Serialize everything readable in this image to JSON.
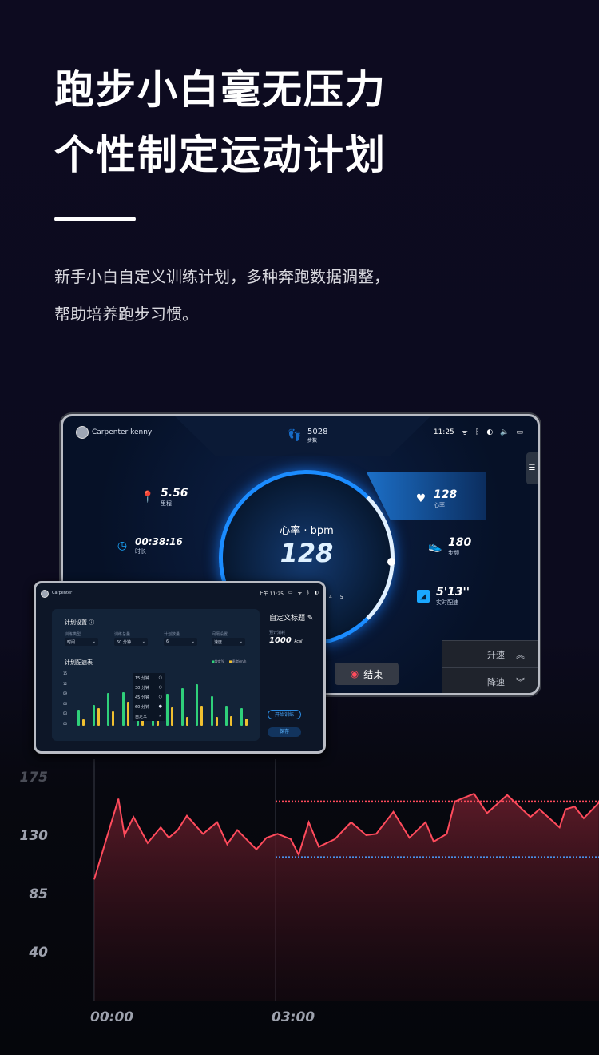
{
  "headline": {
    "line1": "跑步小白毫无压力",
    "line2": "个性制定运动计划"
  },
  "subtitle": {
    "line1": "新手小白自定义训练计划，多种奔跑数据调整，",
    "line2": "帮助培养跑步习惯。"
  },
  "main_tablet": {
    "user": "Carpenter kenny",
    "steps": {
      "value": "5028",
      "label": "步数"
    },
    "time": "11:25",
    "status_icons": [
      "wifi-icon",
      "bluetooth-icon",
      "brightness-icon",
      "volume-icon",
      "message-icon"
    ],
    "distance": {
      "value": "5.56",
      "label": "里程"
    },
    "duration": {
      "value": "00:38:16",
      "label": "时长"
    },
    "gauge": {
      "unit": "心率 · bpm",
      "value": "128"
    },
    "heart_rate": {
      "value": "128",
      "label": "心率"
    },
    "cadence": {
      "value": "180",
      "label": "步频"
    },
    "pace": {
      "value": "5'13''",
      "label": "实时配速"
    },
    "end_button": "结束",
    "speed_up": "升速",
    "speed_down": "降速",
    "mini_axis": [
      "4",
      "5"
    ],
    "accent": "#1a8cff"
  },
  "plan_tablet": {
    "user": "Carpenter",
    "time": "上午 11:25",
    "section_title": "计划设置",
    "fields": [
      {
        "label": "训练类型",
        "value": "时间"
      },
      {
        "label": "训练总量",
        "value": "60 分钟"
      },
      {
        "label": "计划数量",
        "value": "6"
      },
      {
        "label": "间隔设置",
        "value": "速度"
      }
    ],
    "dropdown_options": [
      {
        "label": "15 分钟",
        "selected": false
      },
      {
        "label": "30 分钟",
        "selected": false
      },
      {
        "label": "45 分钟",
        "selected": false
      },
      {
        "label": "60 分钟",
        "selected": true
      },
      {
        "label": "自定义",
        "selected": false
      }
    ],
    "pace_table_title": "计划配速表",
    "legend": [
      "坡度%",
      "速度km/h"
    ],
    "y_ticks": [
      "15",
      "12",
      "09",
      "06",
      "03",
      "00"
    ],
    "bars": {
      "green": [
        4.5,
        5.8,
        9.3,
        9.6,
        9.7,
        10.4,
        9.1,
        10.6,
        11.9,
        8.3,
        5.6,
        4.9
      ],
      "yellow": [
        1.9,
        5.1,
        4.1,
        6.8,
        5.2,
        5.6,
        5.2,
        2.6,
        5.6,
        2.4,
        2.8,
        2.1
      ]
    },
    "custom_title": "自定义标题",
    "est_label": "预计消耗",
    "est_value": "1000",
    "est_unit": "kcal",
    "start_button": "开始训练",
    "save_button": "保存",
    "colors": {
      "green": "#2fd07a",
      "yellow": "#f0c030"
    }
  },
  "chart_data": {
    "type": "area",
    "y_ticks": [
      "175",
      "130",
      "85",
      "40"
    ],
    "x_ticks": [
      "00:00",
      "03:00"
    ],
    "ylim": [
      40,
      175
    ],
    "x": [
      "00:00",
      "00:24",
      "00:30",
      "00:39",
      "00:53",
      "01:06",
      "01:14",
      "01:23",
      "01:32",
      "01:48",
      "02:02",
      "02:12",
      "02:22",
      "02:41",
      "02:51",
      "03:02",
      "03:15",
      "03:23",
      "03:33",
      "03:43",
      "03:59",
      "04:15",
      "04:30",
      "04:40",
      "04:57",
      "05:13",
      "05:29",
      "05:37",
      "05:50",
      "05:58",
      "06:17",
      "06:30",
      "06:50",
      "07:13",
      "07:22",
      "07:42",
      "07:48",
      "07:57",
      "08:06",
      "08:21"
    ],
    "values": [
      96,
      158,
      130,
      144,
      124,
      136,
      128,
      134,
      145,
      131,
      140,
      123,
      134,
      119,
      128,
      131,
      127,
      115,
      140,
      121,
      127,
      140,
      130,
      131,
      148,
      128,
      140,
      125,
      131,
      156,
      162,
      147,
      161,
      144,
      150,
      136,
      150,
      152,
      143,
      155
    ],
    "reference_lines": [
      {
        "value": 156,
        "color": "#ff4b5c",
        "from": "03:00"
      },
      {
        "value": 113,
        "color": "#4a90e8",
        "from": "03:00"
      }
    ],
    "line_color": "#ff4b5c",
    "grid": false
  }
}
